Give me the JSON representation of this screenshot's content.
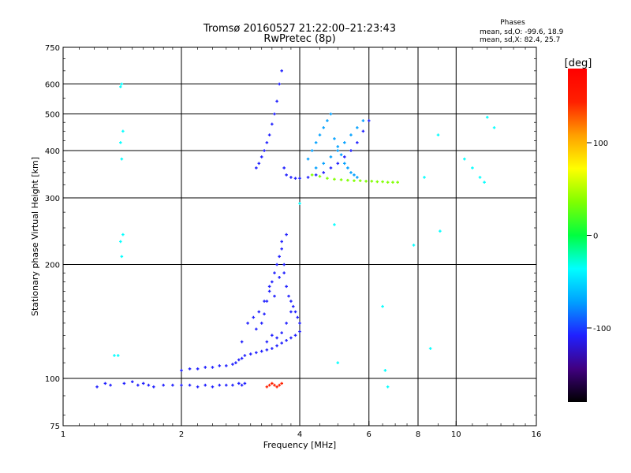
{
  "chart_data": {
    "type": "scatter",
    "title": "Tromsø 20160527 21:22:00–21:23:43",
    "subtitle": "RwPretec (8p)",
    "stats": {
      "heading": "Phases",
      "line1": "mean, sd,O: -99.6, 18.9",
      "line2": "mean, sd,X:  82.4, 25.7"
    },
    "xlabel": "Frequency [MHz]",
    "ylabel": "Stationary phase Virtual Height [km]",
    "xscale": "log2",
    "yscale": "log",
    "xlim": [
      1,
      16
    ],
    "ylim": [
      75,
      750
    ],
    "xticks": [
      {
        "v": 1,
        "label": "1"
      },
      {
        "v": 2,
        "label": "2"
      },
      {
        "v": 4,
        "label": "4"
      },
      {
        "v": 6,
        "label": "6"
      },
      {
        "v": 8,
        "label": "8"
      },
      {
        "v": 10,
        "label": "10"
      },
      {
        "v": 16,
        "label": "16"
      }
    ],
    "xgrid": [
      2,
      4,
      6,
      8,
      10
    ],
    "yticks": [
      {
        "v": 75,
        "label": "75"
      },
      {
        "v": 100,
        "label": "100"
      },
      {
        "v": 200,
        "label": "200"
      },
      {
        "v": 300,
        "label": "300"
      },
      {
        "v": 400,
        "label": "400"
      },
      {
        "v": 500,
        "label": "500"
      },
      {
        "v": 600,
        "label": "600"
      },
      {
        "v": 750,
        "label": "750"
      }
    ],
    "ygrid": [
      100,
      200,
      300,
      400,
      500,
      600
    ],
    "colorbar": {
      "label": "[deg]",
      "range": [
        -180,
        180
      ],
      "ticks": [
        {
          "v": 100,
          "label": "100"
        },
        {
          "v": 0,
          "label": "0"
        },
        {
          "v": -100,
          "label": "-100"
        }
      ],
      "colors": [
        "#000000",
        "#400080",
        "#2020ff",
        "#00a0ff",
        "#00ffff",
        "#00ff40",
        "#80ff00",
        "#ffff00",
        "#ffa000",
        "#ff2000",
        "#ff0000"
      ]
    },
    "series": [
      {
        "name": "E layer trace",
        "phase": -100,
        "x": [
          1.22,
          1.28,
          1.32,
          1.43,
          1.5,
          1.55,
          1.6,
          1.65,
          1.7,
          1.8,
          1.9,
          2.0,
          2.1,
          2.2,
          2.3,
          2.4,
          2.5,
          2.6,
          2.7,
          2.8,
          2.85,
          2.9
        ],
        "y": [
          95,
          97,
          96,
          97,
          98,
          96,
          97,
          96,
          95,
          96,
          96,
          96,
          96,
          95,
          96,
          95,
          96,
          96,
          96,
          97,
          96,
          97
        ]
      },
      {
        "name": "Es trace (lower)",
        "phase": -100,
        "x": [
          2.0,
          2.1,
          2.2,
          2.3,
          2.4,
          2.5,
          2.6,
          2.7,
          2.75,
          2.8,
          2.85,
          2.9,
          3.0,
          3.1,
          3.2,
          3.3,
          3.4,
          3.5,
          3.6,
          3.7,
          3.8,
          3.9,
          4.0
        ],
        "y": [
          105,
          106,
          106,
          107,
          107,
          108,
          108,
          109,
          110,
          112,
          113,
          115,
          116,
          117,
          118,
          119,
          120,
          122,
          124,
          126,
          128,
          130,
          133
        ]
      },
      {
        "name": "F1 spread cluster",
        "phase": -110,
        "x": [
          3.1,
          3.2,
          3.25,
          3.3,
          3.35,
          3.4,
          3.45,
          3.5,
          3.55,
          3.6,
          3.65,
          3.7,
          3.75,
          3.8,
          3.85,
          3.9,
          3.95,
          4.0,
          3.3,
          3.4,
          3.5,
          3.6,
          3.7,
          3.8,
          3.45,
          3.55,
          3.65,
          3.35,
          3.25,
          3.15,
          3.05,
          2.95,
          2.85,
          3.6,
          3.7
        ],
        "y": [
          135,
          140,
          148,
          160,
          170,
          180,
          190,
          200,
          210,
          220,
          190,
          175,
          165,
          160,
          155,
          150,
          145,
          140,
          125,
          130,
          128,
          132,
          140,
          150,
          165,
          185,
          200,
          175,
          160,
          150,
          145,
          140,
          125,
          230,
          240
        ]
      },
      {
        "name": "F2 ordinary trace",
        "phase": -100,
        "x": [
          3.1,
          3.15,
          3.2,
          3.25,
          3.3,
          3.35,
          3.4,
          3.45,
          3.5,
          3.55,
          3.6,
          3.65,
          3.7,
          3.8,
          3.9,
          4.0,
          4.2,
          4.4,
          4.6,
          4.8,
          5.0,
          5.2,
          5.4,
          5.6,
          5.8,
          6.0
        ],
        "y": [
          360,
          370,
          385,
          400,
          420,
          440,
          470,
          500,
          540,
          600,
          650,
          360,
          345,
          340,
          338,
          338,
          340,
          345,
          350,
          360,
          370,
          385,
          400,
          420,
          450,
          480
        ]
      },
      {
        "name": "F2 spread cluster",
        "phase": -90,
        "x": [
          4.2,
          4.3,
          4.4,
          4.5,
          4.6,
          4.7,
          4.8,
          4.9,
          5.0,
          5.1,
          5.2,
          5.3,
          5.4,
          5.5,
          5.6,
          4.4,
          4.6,
          4.8,
          5.0,
          5.2,
          5.4,
          5.6,
          5.8
        ],
        "y": [
          380,
          400,
          420,
          440,
          460,
          480,
          500,
          430,
          410,
          390,
          370,
          360,
          350,
          345,
          340,
          360,
          370,
          385,
          400,
          420,
          440,
          460,
          480
        ]
      },
      {
        "name": "F2 extraordinary trace",
        "phase": 40,
        "x": [
          4.3,
          4.5,
          4.7,
          4.9,
          5.1,
          5.3,
          5.5,
          5.7,
          5.9,
          6.1,
          6.3,
          6.5,
          6.7,
          6.9,
          7.1
        ],
        "y": [
          345,
          342,
          338,
          336,
          335,
          334,
          333,
          333,
          332,
          332,
          331,
          331,
          330,
          330,
          330
        ]
      },
      {
        "name": "Es sporadic (X)",
        "phase": 130,
        "x": [
          3.3,
          3.35,
          3.4,
          3.45,
          3.5,
          3.55,
          3.6
        ],
        "y": [
          95,
          96,
          97,
          96,
          95,
          96,
          97
        ]
      },
      {
        "name": "Isolated echoes",
        "phase": -30,
        "x": [
          1.4,
          1.41,
          1.42,
          1.4,
          1.41,
          1.42,
          1.4,
          1.41,
          1.35,
          1.38,
          4.0,
          4.9,
          5.0,
          6.5,
          6.6,
          6.7,
          7.8,
          8.3,
          8.6,
          9.0,
          9.1,
          10.5,
          11.0,
          11.5,
          11.8,
          12.0,
          12.5
        ],
        "y": [
          590,
          600,
          450,
          420,
          380,
          240,
          230,
          210,
          115,
          115,
          290,
          255,
          110,
          155,
          105,
          95,
          225,
          340,
          120,
          440,
          245,
          380,
          360,
          340,
          330,
          490,
          460
        ]
      }
    ]
  }
}
